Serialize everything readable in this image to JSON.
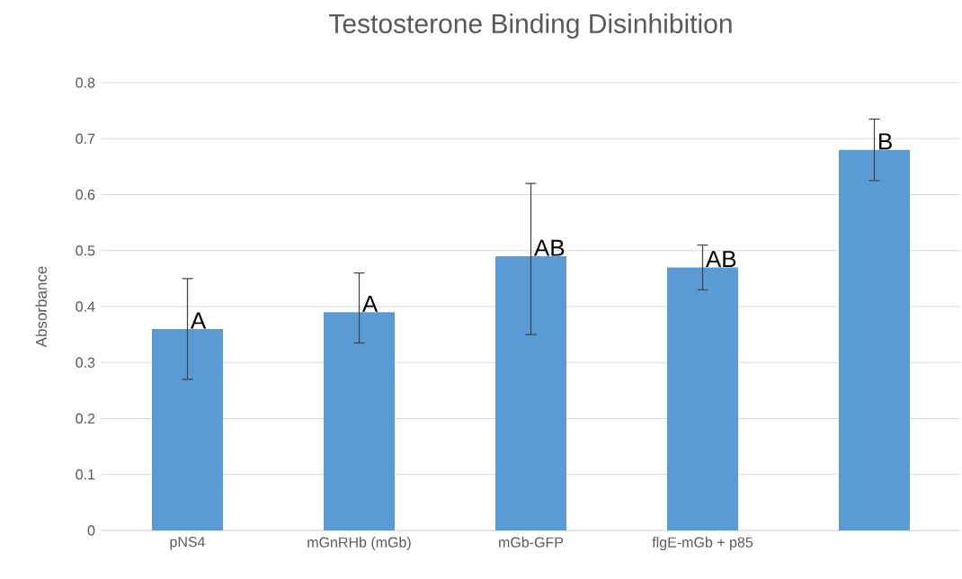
{
  "chart_data": {
    "type": "bar",
    "title": "Testosterone Binding Disinhibition",
    "ylabel": "Absorbance",
    "categories": [
      "pNS4",
      "mGnRHb (mGb)",
      "mGb-GFP",
      "flgE-mGb + p85",
      null
    ],
    "values": [
      0.36,
      0.39,
      0.49,
      0.47,
      0.68
    ],
    "errors": [
      [
        0.27,
        0.45
      ],
      [
        0.335,
        0.46
      ],
      [
        0.35,
        0.62
      ],
      [
        0.43,
        0.51
      ],
      [
        0.625,
        0.735
      ]
    ],
    "color": "#5b9bd5",
    "annotations": [
      "A",
      "A",
      "AB",
      "AB",
      "B"
    ],
    "ylim": [
      0,
      0.8
    ],
    "yticks": [
      0,
      0.1,
      0.2,
      0.3,
      0.4,
      0.5,
      0.6,
      0.7,
      0.8
    ],
    "grid": "y"
  }
}
